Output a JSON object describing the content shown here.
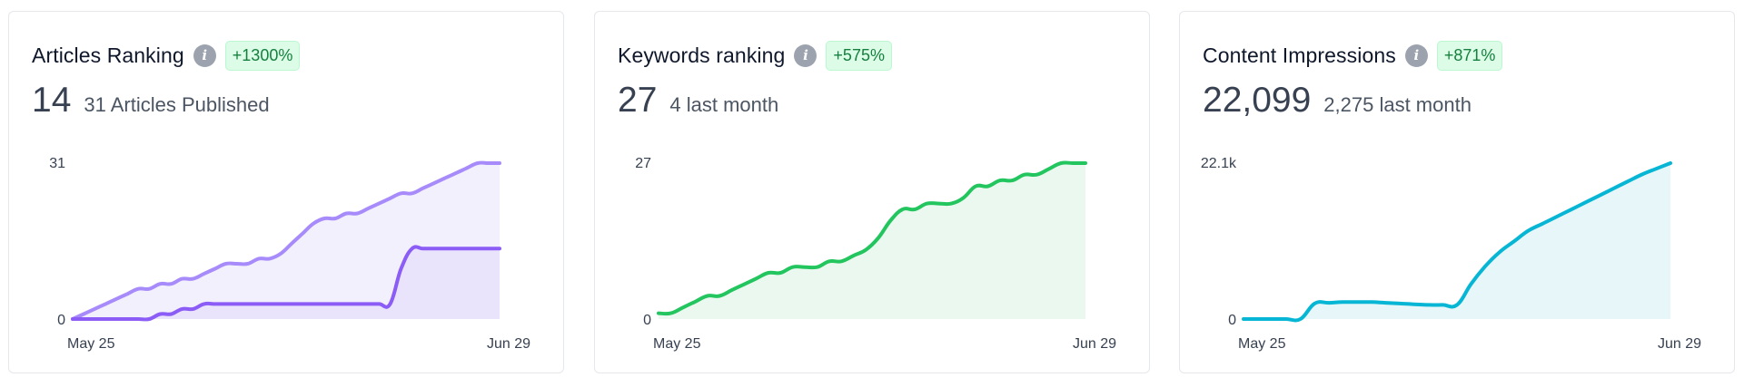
{
  "colors": {
    "purple_light": "#a78bfa",
    "purple_dark": "#8b5cf6",
    "green": "#22c55e",
    "cyan": "#06b6d4",
    "badge_bg": "#dcfce7",
    "badge_text": "#15803d"
  },
  "cards": [
    {
      "title": "Articles Ranking",
      "info_icon": "info-icon",
      "badge": "+1300%",
      "metric": "14",
      "metric_sub": "31 Articles Published"
    },
    {
      "title": "Keywords ranking",
      "info_icon": "info-icon",
      "badge": "+575%",
      "metric": "27",
      "metric_sub": "4 last month"
    },
    {
      "title": "Content Impressions",
      "info_icon": "info-icon",
      "badge": "+871%",
      "metric": "22,099",
      "metric_sub": "2,275 last month"
    }
  ],
  "chart_data": [
    {
      "type": "area",
      "x_start": "May 25",
      "x_end": "Jun 29",
      "y_top_label": "31",
      "y_bottom_label": "0",
      "ylim": [
        0,
        31
      ],
      "series": [
        {
          "color": "#a78bfa",
          "fill": "#f3f0fd",
          "values": [
            0,
            1,
            2,
            3,
            4,
            5,
            6,
            6,
            7,
            7,
            8,
            8,
            9,
            10,
            11,
            11,
            11,
            12,
            12,
            13,
            15,
            17,
            19,
            20,
            20,
            21,
            21,
            22,
            23,
            24,
            25,
            25,
            26,
            27,
            28,
            29,
            30,
            31,
            31,
            31
          ]
        },
        {
          "color": "#8b5cf6",
          "fill": "#e9e3fc",
          "values": [
            0,
            0,
            0,
            0,
            0,
            0,
            0,
            0,
            1,
            1,
            2,
            2,
            3,
            3,
            3,
            3,
            3,
            3,
            3,
            3,
            3,
            3,
            3,
            3,
            3,
            3,
            3,
            3,
            3,
            3,
            10,
            14,
            14,
            14,
            14,
            14,
            14,
            14,
            14,
            14
          ]
        }
      ]
    },
    {
      "type": "area",
      "x_start": "May 25",
      "x_end": "Jun 29",
      "y_top_label": "27",
      "y_bottom_label": "0",
      "ylim": [
        0,
        27
      ],
      "series": [
        {
          "color": "#22c55e",
          "fill": "#ebf8ef",
          "values": [
            1,
            1,
            2,
            3,
            4,
            4,
            5,
            6,
            7,
            8,
            8,
            9,
            9,
            9,
            10,
            10,
            11,
            12,
            14,
            17,
            19,
            19,
            20,
            20,
            20,
            21,
            23,
            23,
            24,
            24,
            25,
            25,
            26,
            27,
            27,
            27
          ]
        }
      ]
    },
    {
      "type": "area",
      "x_start": "May 25",
      "x_end": "Jun 29",
      "y_top_label": "22.1k",
      "y_bottom_label": "0",
      "ylim": [
        0,
        22.1
      ],
      "series": [
        {
          "color": "#06b6d4",
          "fill": "#e7f6f8",
          "values": [
            0,
            0,
            0,
            0,
            0,
            2.2,
            2.3,
            2.4,
            2.4,
            2.4,
            2.3,
            2.2,
            2.1,
            2.0,
            2.0,
            2.0,
            5.0,
            7.5,
            9.5,
            11.0,
            12.5,
            13.5,
            14.5,
            15.5,
            16.5,
            17.5,
            18.5,
            19.5,
            20.5,
            21.3,
            22.1
          ]
        }
      ]
    }
  ]
}
